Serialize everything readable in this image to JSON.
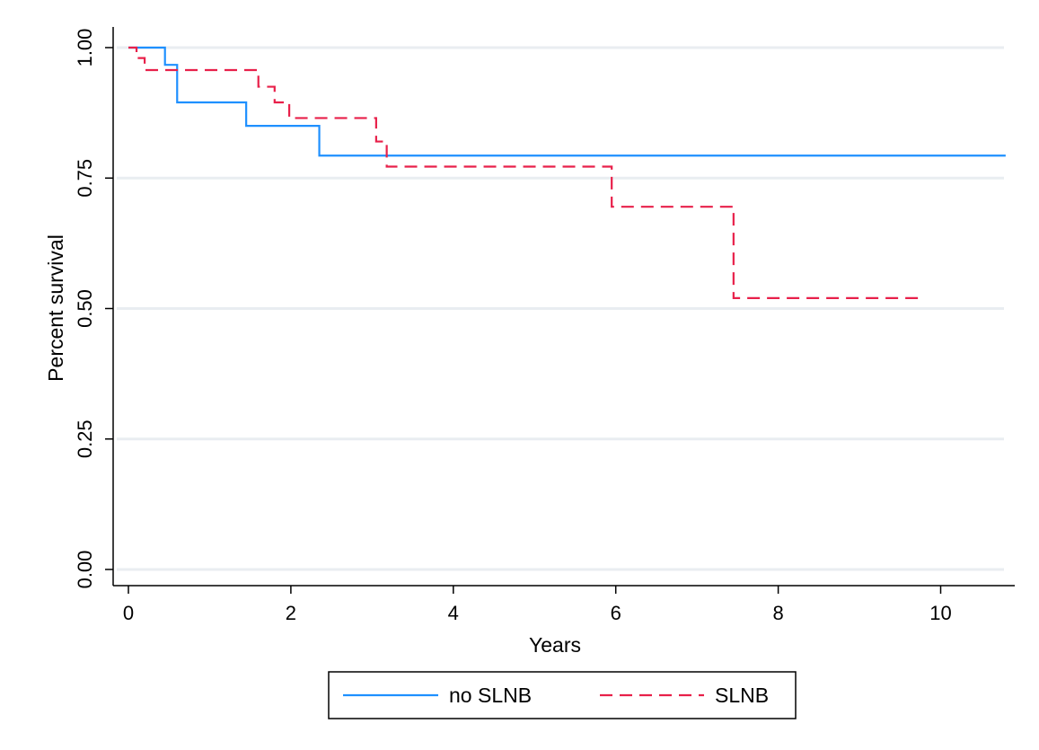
{
  "chart_data": {
    "type": "line",
    "title": "",
    "xlabel": "Years",
    "ylabel": "Percent survival",
    "xlim": [
      0,
      10.8
    ],
    "ylim": [
      0,
      1
    ],
    "xticks": [
      0,
      2,
      4,
      6,
      8,
      10
    ],
    "yticks": [
      0,
      0.25,
      0.5,
      0.75,
      1
    ],
    "xtick_labels": [
      "0",
      "2",
      "4",
      "6",
      "8",
      "10"
    ],
    "ytick_labels": [
      "0.00",
      "0.25",
      "0.50",
      "0.75",
      "1.00"
    ],
    "grid": true,
    "legend_position": "bottom",
    "step": true,
    "series": [
      {
        "name": "no SLNB",
        "color": "#1e90ff",
        "dash": "solid",
        "x": [
          0,
          0.45,
          0.6,
          1.45,
          2.35,
          10.8
        ],
        "y": [
          1.0,
          0.967,
          0.895,
          0.85,
          0.793,
          0.793
        ]
      },
      {
        "name": "SLNB",
        "color": "#e8204a",
        "dash": "dashed",
        "x": [
          0,
          0.1,
          0.2,
          1.6,
          1.8,
          1.98,
          3.05,
          3.18,
          5.95,
          7.45,
          9.8
        ],
        "y": [
          1.0,
          0.98,
          0.957,
          0.925,
          0.895,
          0.865,
          0.82,
          0.772,
          0.695,
          0.52,
          0.52
        ]
      }
    ]
  }
}
